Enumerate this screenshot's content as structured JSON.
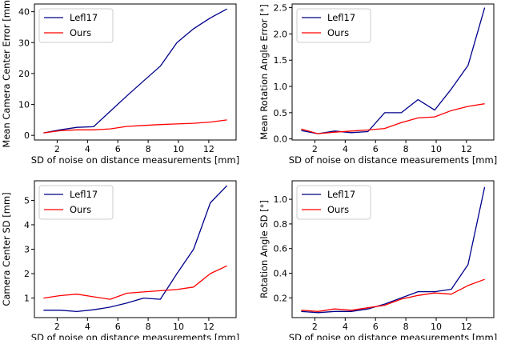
{
  "figure": {
    "line_colors": {
      "Lefl17": "#00008b",
      "Ours": "#ff0000"
    }
  },
  "chart_data": [
    {
      "type": "line",
      "xlabel": "SD of noise on distance measurements [mm]",
      "ylabel": "Mean Camera Center Error [mm]",
      "xlim": [
        0.5,
        13.8
      ],
      "ylim": [
        -1.5,
        42.5
      ],
      "xticks": [
        2,
        4,
        6,
        8,
        10,
        12
      ],
      "yticks": [
        0,
        10,
        20,
        30,
        40
      ],
      "legend": "top-left",
      "grid": false,
      "series": [
        {
          "name": "Lefl17",
          "x": [
            1.1,
            2.2,
            3.3,
            4.4,
            5.5,
            6.6,
            7.7,
            8.8,
            9.9,
            11.0,
            12.1,
            13.2
          ],
          "values": [
            0.8,
            1.8,
            2.6,
            2.8,
            7.8,
            12.8,
            17.6,
            22.4,
            30.0,
            34.5,
            38.0,
            40.9
          ]
        },
        {
          "name": "Ours",
          "x": [
            1.1,
            2.2,
            3.3,
            4.4,
            5.5,
            6.6,
            7.7,
            8.8,
            9.9,
            11.0,
            12.1,
            13.2
          ],
          "values": [
            0.8,
            1.5,
            1.8,
            1.8,
            2.1,
            2.9,
            3.2,
            3.5,
            3.7,
            3.9,
            4.3,
            5.0
          ]
        }
      ]
    },
    {
      "type": "line",
      "xlabel": "SD of noise on distance measurements [mm]",
      "ylabel": "Mean Rotation Angle Error [°]",
      "xlim": [
        0.5,
        13.8
      ],
      "ylim": [
        -0.02,
        2.57
      ],
      "xticks": [
        2,
        4,
        6,
        8,
        10,
        12
      ],
      "yticks": [
        0.0,
        0.5,
        1.0,
        1.5,
        2.0,
        2.5
      ],
      "yticklabels": [
        "0.0",
        "0.5",
        "1.0",
        "1.5",
        "2.0",
        "2.5"
      ],
      "legend": "top-left",
      "grid": false,
      "series": [
        {
          "name": "Lefl17",
          "x": [
            1.1,
            2.2,
            3.3,
            4.4,
            5.5,
            6.6,
            7.7,
            8.8,
            9.9,
            11.0,
            12.1,
            13.2
          ],
          "values": [
            0.16,
            0.1,
            0.15,
            0.12,
            0.14,
            0.5,
            0.5,
            0.75,
            0.55,
            0.95,
            1.4,
            2.5
          ]
        },
        {
          "name": "Ours",
          "x": [
            1.1,
            2.2,
            3.3,
            4.4,
            5.5,
            6.6,
            7.7,
            8.8,
            9.9,
            11.0,
            12.1,
            13.2
          ],
          "values": [
            0.19,
            0.1,
            0.13,
            0.15,
            0.17,
            0.2,
            0.31,
            0.4,
            0.42,
            0.54,
            0.62,
            0.67
          ]
        }
      ]
    },
    {
      "type": "line",
      "xlabel": "SD of noise on distance measurements [mm]",
      "ylabel": "Camera Center SD [mm]",
      "xlim": [
        0.5,
        13.8
      ],
      "ylim": [
        0.2,
        5.8
      ],
      "xticks": [
        2,
        4,
        6,
        8,
        10,
        12
      ],
      "yticks": [
        1,
        2,
        3,
        4,
        5
      ],
      "legend": "top-left",
      "grid": false,
      "series": [
        {
          "name": "Lefl17",
          "x": [
            1.1,
            2.2,
            3.3,
            4.4,
            5.5,
            6.6,
            7.7,
            8.8,
            9.9,
            11.0,
            12.1,
            13.2
          ],
          "values": [
            0.5,
            0.5,
            0.45,
            0.52,
            0.63,
            0.8,
            1.0,
            0.95,
            2.0,
            3.0,
            4.9,
            5.6
          ]
        },
        {
          "name": "Ours",
          "x": [
            1.1,
            2.2,
            3.3,
            4.4,
            5.5,
            6.6,
            7.7,
            8.8,
            9.9,
            11.0,
            12.1,
            13.2
          ],
          "values": [
            1.0,
            1.1,
            1.16,
            1.05,
            0.95,
            1.2,
            1.25,
            1.3,
            1.35,
            1.45,
            2.0,
            2.32
          ]
        }
      ]
    },
    {
      "type": "line",
      "xlabel": "SD of noise on distance measurements [mm]",
      "ylabel": "Rotation Angle SD [°]",
      "xlim": [
        0.5,
        13.8
      ],
      "ylim": [
        0.04,
        1.15
      ],
      "xticks": [
        2,
        4,
        6,
        8,
        10,
        12
      ],
      "yticks": [
        0.2,
        0.4,
        0.6,
        0.8,
        1.0
      ],
      "yticklabels": [
        "0.2",
        "0.4",
        "0.6",
        "0.8",
        "1.0"
      ],
      "legend": "top-left",
      "grid": false,
      "series": [
        {
          "name": "Lefl17",
          "x": [
            1.1,
            2.2,
            3.3,
            4.4,
            5.5,
            6.6,
            7.7,
            8.8,
            9.9,
            11.0,
            12.1,
            13.2
          ],
          "values": [
            0.09,
            0.08,
            0.09,
            0.09,
            0.11,
            0.15,
            0.2,
            0.25,
            0.25,
            0.27,
            0.47,
            1.1
          ]
        },
        {
          "name": "Ours",
          "x": [
            1.1,
            2.2,
            3.3,
            4.4,
            5.5,
            6.6,
            7.7,
            8.8,
            9.9,
            11.0,
            12.1,
            13.2
          ],
          "values": [
            0.1,
            0.09,
            0.11,
            0.1,
            0.12,
            0.14,
            0.19,
            0.22,
            0.24,
            0.23,
            0.3,
            0.35
          ]
        }
      ]
    }
  ]
}
